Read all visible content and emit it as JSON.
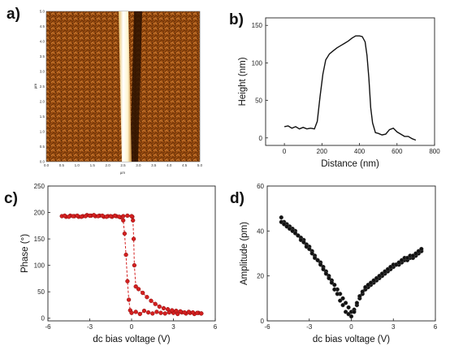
{
  "panels": {
    "a": "a)",
    "b": "b)",
    "c": "c)",
    "d": "d)"
  },
  "afm": {
    "unit": "µm",
    "ticks": [
      "0.0",
      "0.5",
      "1.0",
      "1.5",
      "2.0",
      "2.5",
      "3.0",
      "3.5",
      "4.0",
      "4.5",
      "5.0"
    ]
  },
  "chart_data": [
    {
      "id": "b",
      "type": "line",
      "xlabel": "Distance (nm)",
      "ylabel": "Height (nm)",
      "xlim": [
        -100,
        800
      ],
      "ylim": [
        -10,
        160
      ],
      "xticks": [
        0,
        200,
        400,
        600,
        800
      ],
      "yticks": [
        0,
        50,
        100,
        150
      ],
      "x": [
        0,
        20,
        40,
        60,
        80,
        100,
        120,
        140,
        160,
        175,
        190,
        205,
        220,
        240,
        260,
        280,
        300,
        320,
        340,
        360,
        380,
        400,
        415,
        430,
        440,
        450,
        460,
        470,
        485,
        500,
        520,
        540,
        560,
        580,
        600,
        620,
        640,
        660,
        680,
        700
      ],
      "values": [
        15,
        16,
        13,
        15,
        12,
        14,
        12,
        13,
        12,
        22,
        55,
        85,
        104,
        112,
        116,
        120,
        123,
        126,
        129,
        133,
        136,
        136,
        135,
        128,
        110,
        80,
        40,
        20,
        7,
        6,
        4,
        5,
        11,
        13,
        8,
        5,
        2,
        2,
        -1,
        -3
      ]
    },
    {
      "id": "c",
      "type": "scatter",
      "xlabel": "dc bias voltage (V)",
      "ylabel": "Phase (°)",
      "xlim": [
        -6,
        6
      ],
      "ylim": [
        -5,
        250
      ],
      "xticks": [
        -6,
        -3,
        0,
        3,
        6
      ],
      "yticks": [
        0,
        50,
        100,
        150,
        200,
        250
      ],
      "series": [
        {
          "x": [
            -5,
            -4.7,
            -4.4,
            -4.1,
            -3.8,
            -3.5,
            -3.2,
            -2.9,
            -2.6,
            -2.3,
            -2.0,
            -1.7,
            -1.4,
            -1.1,
            -0.8,
            -0.6,
            -0.5,
            -0.4,
            -0.3,
            -0.2,
            -0.1,
            0.0,
            0.3,
            0.6,
            0.9,
            1.2,
            1.5,
            1.8,
            2.1,
            2.4,
            2.7,
            3.0,
            3.3,
            3.6,
            3.9,
            4.2,
            4.5,
            4.8,
            5.0
          ],
          "values": [
            193,
            192,
            194,
            193,
            192,
            193,
            195,
            194,
            193,
            194,
            192,
            193,
            192,
            193,
            191,
            185,
            160,
            120,
            70,
            35,
            15,
            10,
            12,
            8,
            14,
            11,
            9,
            12,
            10,
            9,
            11,
            10,
            8,
            11,
            9,
            10,
            8,
            10,
            9
          ]
        },
        {
          "x": [
            5.0,
            4.7,
            4.4,
            4.1,
            3.8,
            3.5,
            3.2,
            2.9,
            2.6,
            2.3,
            2.0,
            1.7,
            1.4,
            1.1,
            0.8,
            0.5,
            0.3,
            0.2,
            0.15,
            0.1,
            0.05,
            0.0,
            -0.3,
            -0.6,
            -0.9,
            -1.2,
            -1.5,
            -1.8,
            -2.1,
            -2.4,
            -2.7,
            -3.0,
            -3.3,
            -3.6,
            -3.9,
            -4.2,
            -4.5,
            -4.8
          ],
          "values": [
            9,
            10,
            11,
            12,
            11,
            13,
            14,
            15,
            17,
            19,
            22,
            27,
            33,
            40,
            48,
            55,
            60,
            100,
            150,
            185,
            192,
            193,
            194,
            193,
            192,
            194,
            193,
            192,
            194,
            193,
            195,
            194,
            193,
            192,
            194,
            193,
            192,
            194
          ]
        }
      ]
    },
    {
      "id": "d",
      "type": "scatter",
      "xlabel": "dc bias voltage (V)",
      "ylabel": "Amplitude (pm)",
      "xlim": [
        -6,
        6
      ],
      "ylim": [
        0,
        60
      ],
      "xticks": [
        -6,
        -3,
        0,
        3,
        6
      ],
      "yticks": [
        0,
        20,
        40,
        60
      ],
      "series": [
        {
          "x": [
            -5.0,
            -4.8,
            -4.6,
            -4.4,
            -4.2,
            -4.0,
            -3.8,
            -3.6,
            -3.4,
            -3.2,
            -3.0,
            -2.8,
            -2.6,
            -2.4,
            -2.2,
            -2.0,
            -1.8,
            -1.6,
            -1.4,
            -1.2,
            -1.0,
            -0.8,
            -0.6,
            -0.4,
            -0.2,
            0.0,
            0.2,
            0.4,
            0.6,
            0.8,
            1.0,
            1.2,
            1.4,
            1.6,
            1.8,
            2.0,
            2.2,
            2.4,
            2.6,
            2.8,
            3.0,
            3.2,
            3.4,
            3.6,
            3.8,
            4.0,
            4.2,
            4.4,
            4.6,
            4.8,
            5.0
          ],
          "values": [
            46,
            44,
            43,
            42,
            41,
            40,
            38,
            37,
            36,
            34,
            33,
            31,
            29,
            27,
            26,
            24,
            22,
            20,
            18,
            16,
            14,
            12,
            10,
            8,
            6,
            4,
            5,
            7,
            10,
            12,
            14,
            15,
            16,
            17,
            18,
            19,
            20,
            21,
            22,
            23,
            24,
            25,
            25,
            26,
            27,
            27,
            28,
            28,
            29,
            30,
            31
          ]
        },
        {
          "x": [
            -5.0,
            -4.8,
            -4.6,
            -4.4,
            -4.2,
            -4.0,
            -3.8,
            -3.6,
            -3.4,
            -3.2,
            -3.0,
            -2.8,
            -2.6,
            -2.4,
            -2.2,
            -2.0,
            -1.8,
            -1.6,
            -1.4,
            -1.2,
            -1.0,
            -0.8,
            -0.6,
            -0.4,
            -0.2,
            0.0,
            0.2,
            0.4,
            0.6,
            0.8,
            1.0,
            1.2,
            1.4,
            1.6,
            1.8,
            2.0,
            2.2,
            2.4,
            2.6,
            2.8,
            3.0,
            3.2,
            3.4,
            3.6,
            3.8,
            4.0,
            4.2,
            4.4,
            4.6,
            4.8,
            5.0
          ],
          "values": [
            44,
            43,
            42,
            41,
            40,
            39,
            38,
            36,
            35,
            33,
            32,
            30,
            28,
            27,
            25,
            23,
            21,
            19,
            17,
            14,
            12,
            9,
            7,
            4,
            3,
            2,
            4,
            8,
            11,
            13,
            15,
            16,
            17,
            18,
            19,
            20,
            21,
            22,
            23,
            24,
            25,
            25,
            26,
            27,
            28,
            28,
            29,
            29,
            30,
            31,
            32
          ]
        }
      ]
    }
  ]
}
